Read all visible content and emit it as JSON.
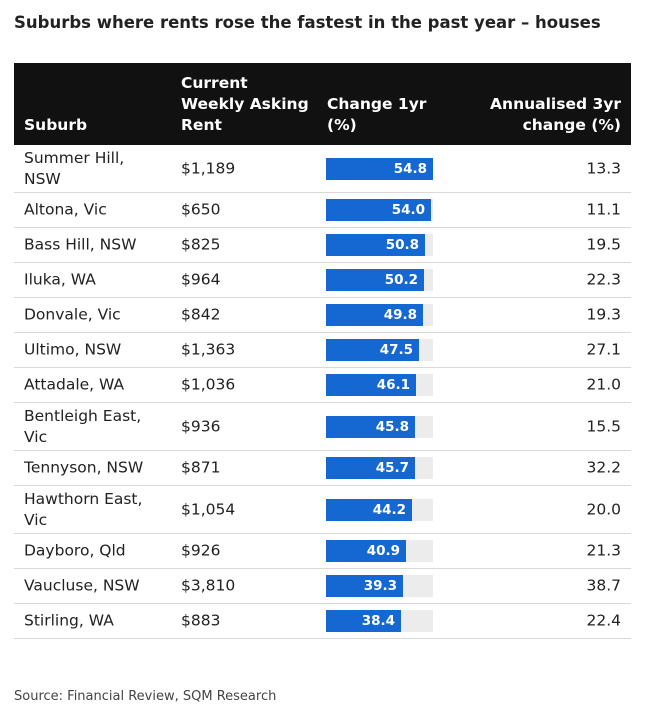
{
  "title": "Suburbs where rents rose the fastest in the past year – houses",
  "source": "Source: Financial Review, SQM Research",
  "colors": {
    "bar": "#1568d1",
    "track": "#ececec",
    "header_bg": "#111111"
  },
  "headers": {
    "suburb": "Suburb",
    "rent": "Current Weekly Asking Rent",
    "change": "Change 1yr (%)",
    "annualised": "Annualised 3yr change (%)"
  },
  "chart_data": {
    "type": "table",
    "bar_column": "change_1yr",
    "bar_scale_max": 54.8,
    "rows": [
      {
        "suburb": "Summer Hill, NSW",
        "rent": "$1,189",
        "change_1yr": 54.8,
        "annualised_3yr": "13.3"
      },
      {
        "suburb": "Altona, Vic",
        "rent": "$650",
        "change_1yr": 54.0,
        "annualised_3yr": "11.1"
      },
      {
        "suburb": "Bass Hill, NSW",
        "rent": "$825",
        "change_1yr": 50.8,
        "annualised_3yr": "19.5"
      },
      {
        "suburb": "Iluka, WA",
        "rent": "$964",
        "change_1yr": 50.2,
        "annualised_3yr": "22.3"
      },
      {
        "suburb": "Donvale, Vic",
        "rent": "$842",
        "change_1yr": 49.8,
        "annualised_3yr": "19.3"
      },
      {
        "suburb": "Ultimo, NSW",
        "rent": "$1,363",
        "change_1yr": 47.5,
        "annualised_3yr": "27.1"
      },
      {
        "suburb": "Attadale, WA",
        "rent": "$1,036",
        "change_1yr": 46.1,
        "annualised_3yr": "21.0"
      },
      {
        "suburb": "Bentleigh East, Vic",
        "rent": "$936",
        "change_1yr": 45.8,
        "annualised_3yr": "15.5"
      },
      {
        "suburb": "Tennyson, NSW",
        "rent": "$871",
        "change_1yr": 45.7,
        "annualised_3yr": "32.2"
      },
      {
        "suburb": "Hawthorn East, Vic",
        "rent": "$1,054",
        "change_1yr": 44.2,
        "annualised_3yr": "20.0"
      },
      {
        "suburb": "Dayboro, Qld",
        "rent": "$926",
        "change_1yr": 40.9,
        "annualised_3yr": "21.3"
      },
      {
        "suburb": "Vaucluse, NSW",
        "rent": "$3,810",
        "change_1yr": 39.3,
        "annualised_3yr": "38.7"
      },
      {
        "suburb": "Stirling, WA",
        "rent": "$883",
        "change_1yr": 38.4,
        "annualised_3yr": "22.4"
      }
    ]
  }
}
